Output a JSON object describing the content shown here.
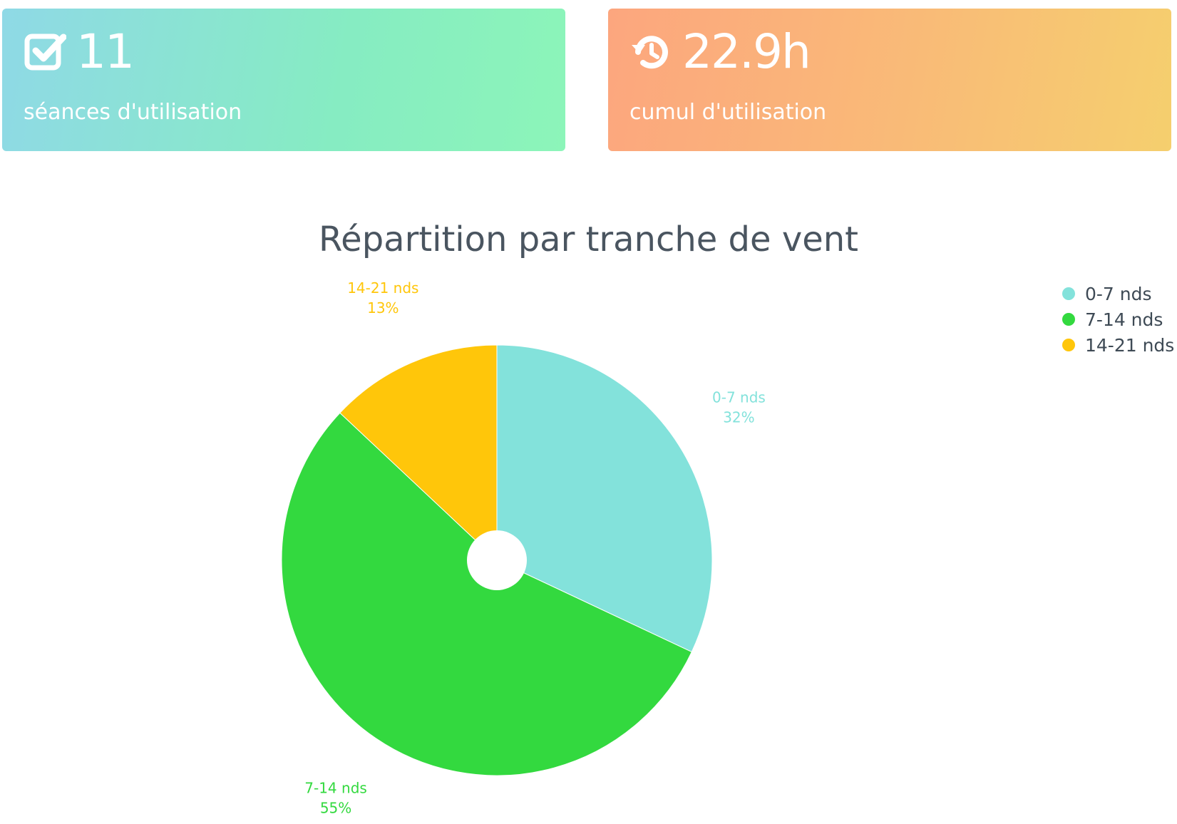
{
  "stats": {
    "sessions": {
      "value": "11",
      "label": "séances d'utilisation",
      "icon": "checkbox-checked-icon"
    },
    "duration": {
      "value": "22.9h",
      "label": "cumul d'utilisation",
      "icon": "history-clock-icon"
    }
  },
  "colors": {
    "card_sessions_gradient": [
      "#8fd9e6",
      "#8cf5b9"
    ],
    "card_duration_gradient": [
      "#fca67e",
      "#f5cf6e"
    ],
    "title": "#4a5560"
  },
  "chart_data": {
    "type": "pie",
    "title": "Répartition par tranche de vent",
    "categories": [
      "0-7 nds",
      "7-14 nds",
      "14-21 nds"
    ],
    "values": [
      32,
      55,
      13
    ],
    "value_labels": [
      "32%",
      "55%",
      "13%"
    ],
    "colors": [
      "#83e2db",
      "#33d93f",
      "#ffc60a"
    ],
    "legend_position": "top-right",
    "inner_hole": true
  }
}
